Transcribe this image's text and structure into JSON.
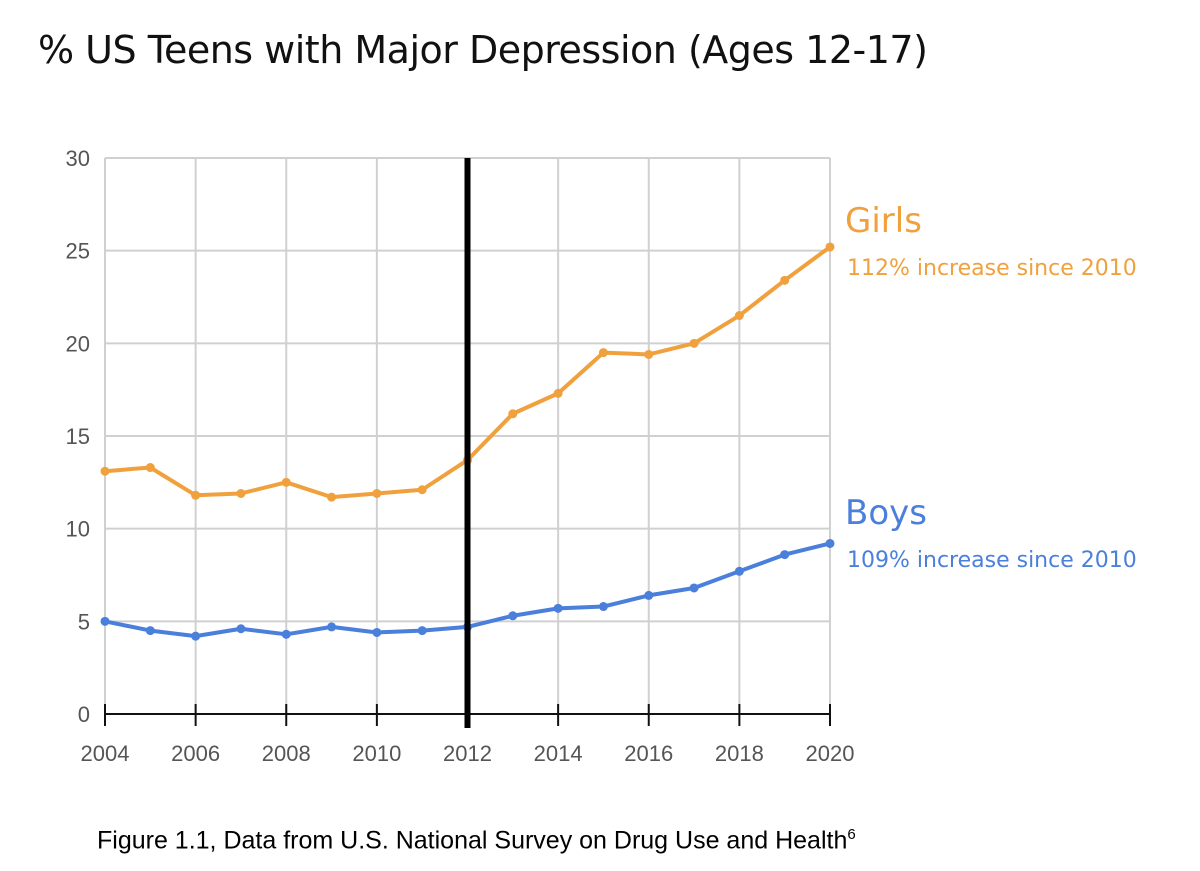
{
  "chart_data": {
    "type": "line",
    "title": "% US Teens with Major Depression (Ages 12-17)",
    "caption": "Figure 1.1, Data from U.S. National Survey on Drug Use and Health",
    "caption_footnote": "6",
    "xlabel": "",
    "ylabel": "",
    "xlim": [
      2004,
      2020
    ],
    "ylim": [
      0,
      30
    ],
    "x_ticks": [
      2004,
      2006,
      2008,
      2010,
      2012,
      2014,
      2016,
      2018,
      2020
    ],
    "y_ticks": [
      0,
      5,
      10,
      15,
      20,
      25,
      30
    ],
    "grid": true,
    "reference_line_x": 2012,
    "x": [
      2004,
      2005,
      2006,
      2007,
      2008,
      2009,
      2010,
      2011,
      2012,
      2013,
      2014,
      2015,
      2016,
      2017,
      2018,
      2019,
      2020
    ],
    "series": [
      {
        "name": "Girls",
        "annotation": "112% increase since 2010",
        "color": "#f0a03c",
        "values": [
          13.1,
          13.3,
          11.8,
          11.9,
          12.5,
          11.7,
          11.9,
          12.1,
          13.7,
          16.2,
          17.3,
          19.5,
          19.4,
          20.0,
          21.5,
          23.4,
          25.2
        ]
      },
      {
        "name": "Boys",
        "annotation": "109% increase since 2010",
        "color": "#4a7fdc",
        "values": [
          5.0,
          4.5,
          4.2,
          4.6,
          4.3,
          4.7,
          4.4,
          4.5,
          4.7,
          5.3,
          5.7,
          5.8,
          6.4,
          6.8,
          7.7,
          8.6,
          9.2
        ]
      }
    ],
    "legend_placement": "right-inline"
  }
}
